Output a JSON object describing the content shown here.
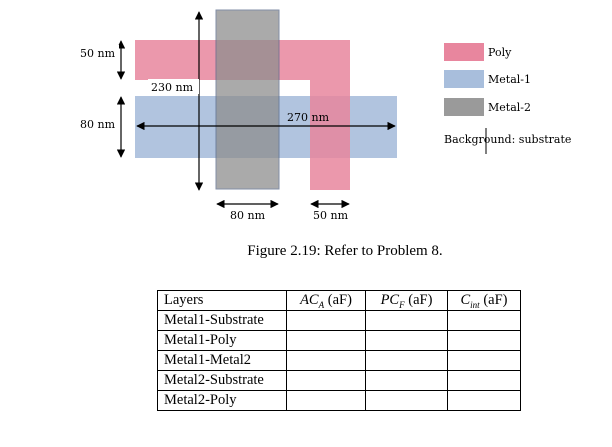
{
  "figure": {
    "labels": {
      "poly_height": "50 nm",
      "gap": "230 nm",
      "metal1_height": "80 nm",
      "metal1_width": "270 nm",
      "metal2_width": "80 nm",
      "poly_width": "50 nm"
    },
    "legend": [
      {
        "label": "Poly",
        "color": "#e8869e"
      },
      {
        "label": "Metal-1",
        "color": "#a8bedc"
      },
      {
        "label": "Metal-2",
        "color": "#9a9a9a"
      }
    ],
    "background_note": "Background: substrate",
    "colors": {
      "poly": "#e8869e",
      "metal1": "#a8bedc",
      "metal2": "#9a9a9a"
    }
  },
  "caption": "Figure 2.19: Refer to Problem 8.",
  "table": {
    "headers": {
      "layers": "Layers",
      "aca_sym": "AC",
      "aca_sub": "A",
      "aca_unit": " (aF)",
      "pcf_sym": "PC",
      "pcf_sub": "F",
      "pcf_unit": " (aF)",
      "cint_sym": "C",
      "cint_sub": "int",
      "cint_unit": " (aF)"
    },
    "rows": [
      "Metal1-Substrate",
      "Metal1-Poly",
      "Metal1-Metal2",
      "Metal2-Substrate",
      "Metal2-Poly"
    ]
  }
}
